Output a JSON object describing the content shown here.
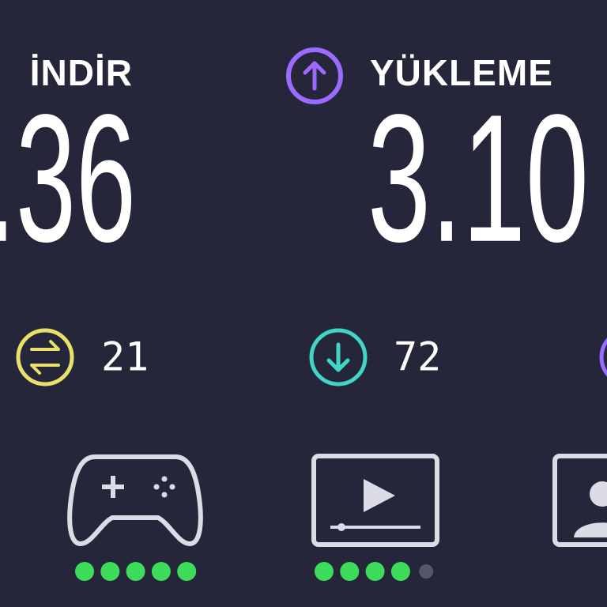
{
  "download": {
    "label": "İNDİR",
    "value": ".36"
  },
  "upload": {
    "label": "YÜKLEME",
    "value": "3.10"
  },
  "ping": "21",
  "jitter": "72",
  "ratings": [
    5,
    4
  ],
  "rating_max": 5
}
